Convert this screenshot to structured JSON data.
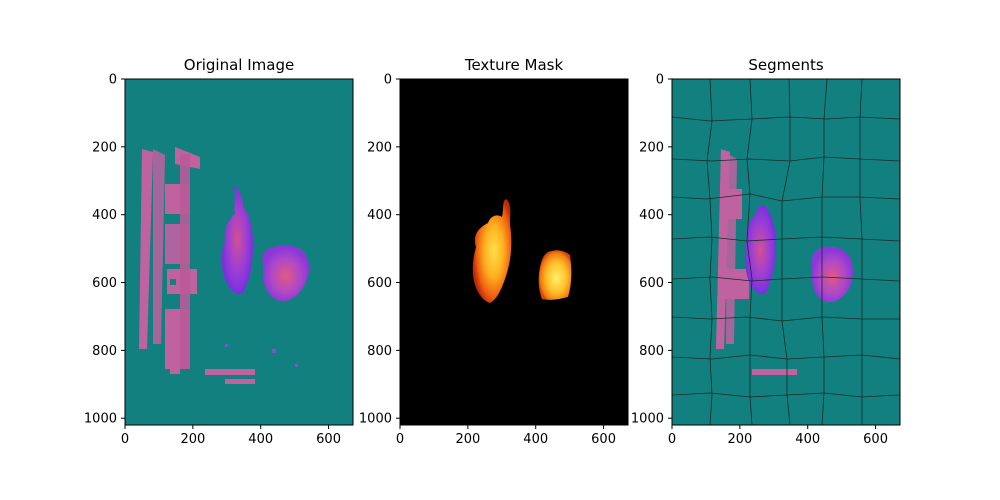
{
  "chart_data": [
    {
      "type": "image",
      "title": "Original Image",
      "xlim": [
        0,
        672
      ],
      "ylim": [
        1020,
        0
      ],
      "xticks": [
        0,
        200,
        400,
        600
      ],
      "yticks": [
        0,
        200,
        400,
        600,
        800,
        1000
      ],
      "background_color": "#138080",
      "blobs": [
        {
          "name": "left-flame",
          "cx": 270,
          "cy": 530,
          "rx": 48,
          "ry": 100,
          "color": "#a049d0"
        },
        {
          "name": "right-flame",
          "cx": 470,
          "cy": 590,
          "rx": 58,
          "ry": 75,
          "color": "#b050c8"
        }
      ],
      "pillars": [
        {
          "x0": 150,
          "x1": 200,
          "y0": 200,
          "y1": 870,
          "color": "#c062a0"
        }
      ]
    },
    {
      "type": "image",
      "title": "Texture Mask",
      "xlim": [
        0,
        672
      ],
      "ylim": [
        1020,
        0
      ],
      "xticks": [
        0,
        200,
        400,
        600
      ],
      "yticks": [
        0,
        200,
        400,
        600,
        800,
        1000
      ],
      "background_color": "#000000",
      "blobs": [
        {
          "name": "left-flame-mask",
          "cx": 270,
          "cy": 530,
          "rx": 50,
          "ry": 115
        },
        {
          "name": "right-flame-mask",
          "cx": 460,
          "cy": 610,
          "rx": 48,
          "ry": 65
        }
      ]
    },
    {
      "type": "image",
      "title": "Segments",
      "xlim": [
        0,
        672
      ],
      "ylim": [
        1020,
        0
      ],
      "xticks": [
        0,
        200,
        400,
        600
      ],
      "yticks": [
        0,
        200,
        400,
        600,
        800,
        1000
      ],
      "background_color": "#138080",
      "boundary_color": "#1a2a2a"
    }
  ],
  "colors": {
    "teal": "#138080",
    "purple": "#9040d0",
    "magenta": "#c062a0",
    "mask_dark": "#000000",
    "flame_core": "#ffe04a",
    "flame_mid": "#ff9a1a",
    "flame_edge": "#e04010"
  }
}
